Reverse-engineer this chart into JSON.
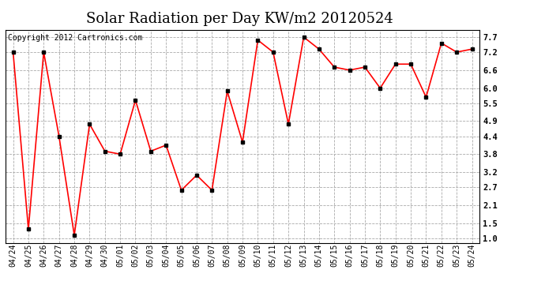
{
  "title": "Solar Radiation per Day KW/m2 20120524",
  "copyright_text": "Copyright 2012 Cartronics.com",
  "x_labels": [
    "04/24",
    "04/25",
    "04/26",
    "04/27",
    "04/28",
    "04/29",
    "04/30",
    "05/01",
    "05/02",
    "05/03",
    "05/04",
    "05/05",
    "05/06",
    "05/07",
    "05/08",
    "05/09",
    "05/10",
    "05/11",
    "05/12",
    "05/13",
    "05/14",
    "05/15",
    "05/16",
    "05/17",
    "05/18",
    "05/19",
    "05/20",
    "05/21",
    "05/22",
    "05/23",
    "05/24"
  ],
  "y_values": [
    7.2,
    1.3,
    7.2,
    4.4,
    1.1,
    4.8,
    3.9,
    3.8,
    5.6,
    3.9,
    4.1,
    2.6,
    3.1,
    2.6,
    5.9,
    4.2,
    7.6,
    7.2,
    4.8,
    7.7,
    7.3,
    6.7,
    6.6,
    6.7,
    6.0,
    6.8,
    6.8,
    5.7,
    7.5,
    7.2,
    7.3
  ],
  "y_ticks": [
    1.0,
    1.5,
    2.1,
    2.7,
    3.2,
    3.8,
    4.4,
    4.9,
    5.5,
    6.0,
    6.6,
    7.2,
    7.7
  ],
  "ylim": [
    0.85,
    7.95
  ],
  "line_color": "red",
  "marker_color": "black",
  "marker": "s",
  "marker_size": 2.5,
  "bg_color": "white",
  "grid_color": "#aaaaaa",
  "title_fontsize": 13,
  "copyright_fontsize": 7,
  "tick_fontsize": 7.5,
  "label_fontsize": 7,
  "line_width": 1.2
}
